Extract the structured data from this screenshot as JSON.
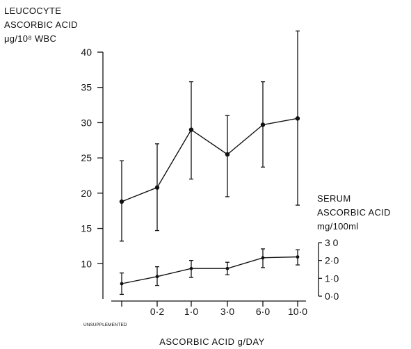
{
  "chart_data": {
    "type": "line",
    "categories": [
      "UNSUPPLEMENTED",
      "0·2",
      "1·0",
      "3·0",
      "6·0",
      "10·0"
    ],
    "xlabel": "ASCORBIC ACID g/DAY",
    "left_axis": {
      "label_lines": [
        "LEUCOCYTE",
        "ASCORBIC ACID",
        "μg/10⁸ WBC"
      ],
      "ticks": [
        "10",
        "15",
        "20",
        "25",
        "30",
        "35",
        "40"
      ],
      "tick_values": [
        10,
        15,
        20,
        25,
        30,
        35,
        40
      ],
      "ylim": [
        5,
        40
      ]
    },
    "right_axis": {
      "label_lines": [
        "SERUM",
        "ASCORBIC ACID",
        "mg/100ml"
      ],
      "ticks": [
        "0·0",
        "1·0",
        "2·0",
        "3 0"
      ],
      "tick_values": [
        0,
        1,
        2,
        3
      ],
      "ylim": [
        0,
        3
      ]
    },
    "series": [
      {
        "axis": "left",
        "values": [
          18.8,
          20.8,
          29.0,
          25.5,
          29.7,
          30.6
        ],
        "error_low": [
          13.2,
          14.7,
          22.0,
          19.5,
          23.7,
          18.3
        ],
        "error_high": [
          24.6,
          27.0,
          35.8,
          31.0,
          35.8,
          43.0
        ]
      },
      {
        "axis": "right",
        "values": [
          0.7,
          1.1,
          1.55,
          1.55,
          2.15,
          2.2
        ],
        "error_low": [
          0.1,
          0.6,
          1.05,
          1.2,
          1.6,
          1.75
        ],
        "error_high": [
          1.3,
          1.65,
          2.0,
          1.9,
          2.65,
          2.6
        ]
      }
    ]
  }
}
